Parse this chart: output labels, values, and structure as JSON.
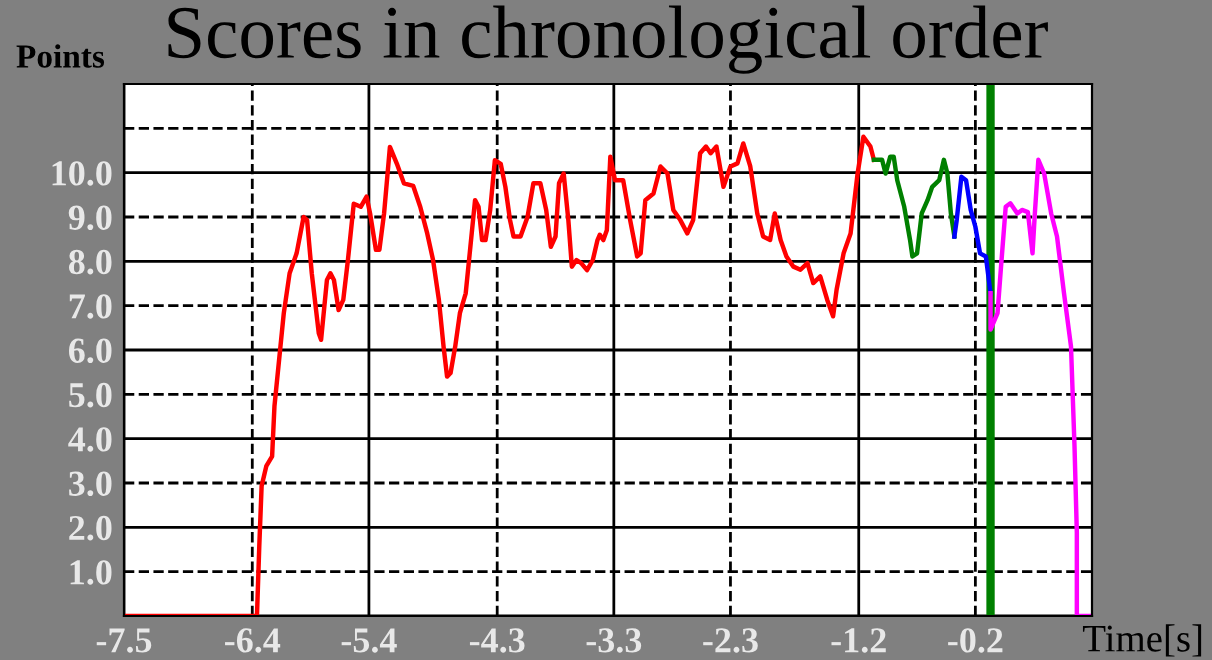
{
  "chart_data": {
    "type": "line",
    "title": "Scores in chronological order",
    "ylabel": "Points",
    "xlabel": "Time[s]",
    "xlim": [
      -7.5,
      0.8
    ],
    "ylim": [
      0,
      12
    ],
    "xticks": [
      -7.5,
      -6.4,
      -5.4,
      -4.3,
      -3.3,
      -2.3,
      -1.2,
      -0.2
    ],
    "yticks": [
      {
        "value": 0,
        "label": null
      },
      {
        "value": 1,
        "label": "1.0"
      },
      {
        "value": 2,
        "label": "2.0"
      },
      {
        "value": 3,
        "label": "3.0"
      },
      {
        "value": 4,
        "label": "4.0"
      },
      {
        "value": 5,
        "label": "5.0"
      },
      {
        "value": 6,
        "label": "6.0"
      },
      {
        "value": 7,
        "label": "7.0"
      },
      {
        "value": 8,
        "label": "8.0"
      },
      {
        "value": 9,
        "label": "9.0"
      },
      {
        "value": 10,
        "label": "10.0"
      },
      {
        "value": 11,
        "label": null
      }
    ],
    "grid": true,
    "marker": "none",
    "line_style": "solid",
    "ref_lines": [
      {
        "axis": "x",
        "value": -0.07,
        "color": "#008000",
        "line_style": "solid"
      }
    ],
    "series": [
      {
        "color": "#ff0000",
        "x": [
          -7.5,
          -6.36,
          -6.34,
          -6.32,
          -6.28,
          -6.23,
          -6.21,
          -6.17,
          -6.13,
          -6.08,
          -6.02,
          -5.96,
          -5.93,
          -5.89,
          -5.83,
          -5.81,
          -5.76,
          -5.73,
          -5.7,
          -5.66,
          -5.62,
          -5.58,
          -5.53,
          -5.47,
          -5.42,
          -5.39,
          -5.34,
          -5.31,
          -5.27,
          -5.22,
          -5.16,
          -5.1,
          -5.02,
          -4.96,
          -4.9,
          -4.85,
          -4.8,
          -4.76,
          -4.73,
          -4.7,
          -4.66,
          -4.62,
          -4.57,
          -4.53,
          -4.49,
          -4.46,
          -4.43,
          -4.4,
          -4.36,
          -4.32,
          -4.27,
          -4.23,
          -4.19,
          -4.16,
          -4.1,
          -4.04,
          -3.99,
          -3.93,
          -3.88,
          -3.84,
          -3.8,
          -3.77,
          -3.73,
          -3.69,
          -3.66,
          -3.62,
          -3.58,
          -3.53,
          -3.48,
          -3.44,
          -3.42,
          -3.39,
          -3.36,
          -3.33,
          -3.29,
          -3.22,
          -3.16,
          -3.1,
          -3.07,
          -3.03,
          -2.96,
          -2.9,
          -2.84,
          -2.79,
          -2.73,
          -2.67,
          -2.62,
          -2.56,
          -2.51,
          -2.47,
          -2.42,
          -2.36,
          -2.3,
          -2.24,
          -2.19,
          -2.13,
          -2.07,
          -2.02,
          -1.96,
          -1.92,
          -1.87,
          -1.82,
          -1.76,
          -1.7,
          -1.64,
          -1.59,
          -1.53,
          -1.47,
          -1.42,
          -1.39,
          -1.33,
          -1.27,
          -1.21,
          -1.16,
          -1.1,
          -1.07
        ],
        "values": [
          0,
          0,
          1.58,
          2.93,
          3.38,
          3.6,
          4.73,
          5.78,
          6.83,
          7.73,
          8.18,
          9.0,
          8.93,
          7.73,
          6.38,
          6.23,
          7.58,
          7.73,
          7.58,
          6.9,
          7.13,
          8.03,
          9.3,
          9.23,
          9.46,
          9.08,
          8.26,
          8.26,
          9.08,
          10.58,
          10.2,
          9.76,
          9.7,
          9.23,
          8.63,
          8.03,
          7.13,
          6.08,
          5.4,
          5.48,
          6.08,
          6.83,
          7.28,
          8.33,
          9.38,
          9.23,
          8.48,
          8.48,
          9.16,
          10.28,
          10.2,
          9.68,
          8.93,
          8.56,
          8.56,
          9.0,
          9.76,
          9.76,
          9.16,
          8.33,
          8.56,
          9.76,
          9.98,
          8.93,
          7.88,
          8.03,
          7.96,
          7.8,
          8.03,
          8.48,
          8.6,
          8.48,
          8.7,
          10.36,
          9.83,
          9.83,
          8.93,
          8.11,
          8.18,
          9.38,
          9.53,
          10.14,
          9.98,
          9.16,
          8.93,
          8.63,
          8.93,
          10.44,
          10.59,
          10.44,
          10.59,
          9.68,
          10.14,
          10.21,
          10.66,
          10.14,
          9.08,
          8.56,
          8.48,
          9.08,
          8.48,
          8.11,
          7.88,
          7.81,
          7.96,
          7.51,
          7.66,
          7.13,
          6.76,
          7.36,
          8.18,
          8.63,
          9.98,
          10.81,
          10.59,
          10.29
        ]
      },
      {
        "color": "#008000",
        "x": [
          -1.07,
          -1.0,
          -0.97,
          -0.93,
          -0.9,
          -0.87,
          -0.81,
          -0.76,
          -0.74,
          -0.7,
          -0.66,
          -0.61,
          -0.57,
          -0.51,
          -0.47,
          -0.44,
          -0.41,
          -0.38
        ],
        "values": [
          10.29,
          10.29,
          9.98,
          10.36,
          10.36,
          9.83,
          9.23,
          8.48,
          8.11,
          8.18,
          9.08,
          9.38,
          9.68,
          9.83,
          10.29,
          9.98,
          9.08,
          8.56
        ]
      },
      {
        "color": "#0000ff",
        "x": [
          -0.38,
          -0.36,
          -0.32,
          -0.28,
          -0.24,
          -0.2,
          -0.16,
          -0.11,
          -0.07
        ],
        "values": [
          8.56,
          8.93,
          9.91,
          9.83,
          9.16,
          8.78,
          8.18,
          8.11,
          7.28
        ]
      },
      {
        "color": "#ff00ff",
        "x": [
          -0.07,
          -0.07,
          -0.01,
          0.02,
          0.06,
          0.1,
          0.16,
          0.2,
          0.25,
          0.29,
          0.31,
          0.34,
          0.39,
          0.45,
          0.5,
          0.56,
          0.62,
          0.65,
          0.67,
          0.67,
          0.8
        ],
        "values": [
          7.28,
          6.46,
          6.83,
          7.88,
          9.23,
          9.31,
          9.08,
          9.16,
          9.11,
          8.18,
          9.08,
          10.29,
          9.98,
          9.08,
          8.56,
          7.28,
          6.08,
          3.83,
          1.88,
          0,
          0
        ]
      }
    ]
  }
}
